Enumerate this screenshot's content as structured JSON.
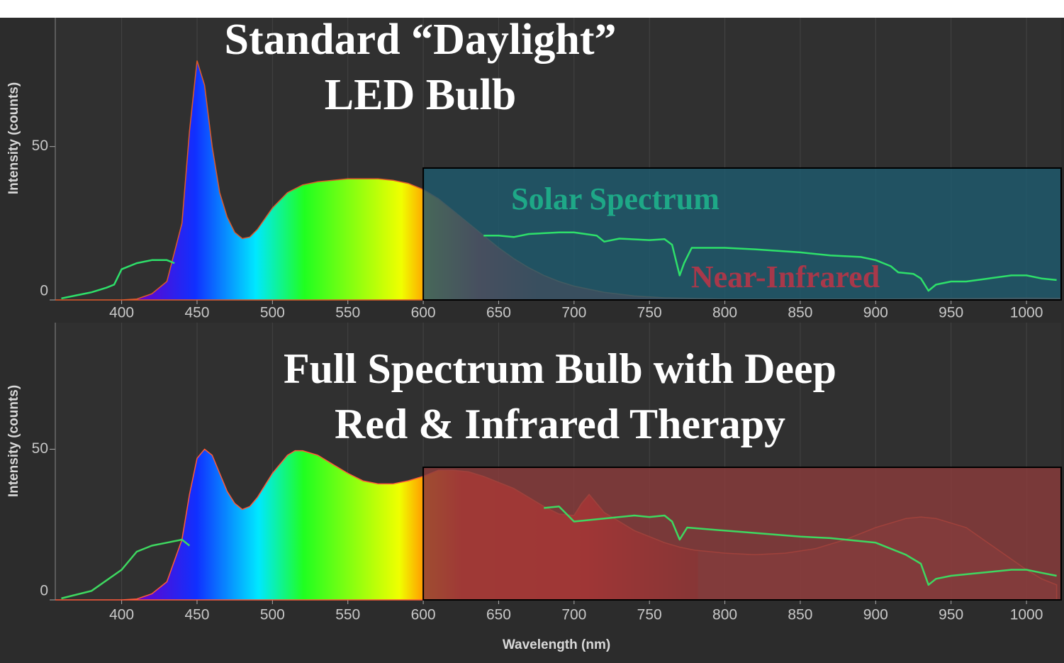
{
  "chart_data": [
    {
      "type": "area",
      "title": [
        "Standard “Daylight”",
        "LED Bulb"
      ],
      "ylabel": "Intensity (counts)",
      "xlim": [
        356,
        1023
      ],
      "ylim": [
        0,
        92
      ],
      "xticks": [
        400,
        450,
        500,
        550,
        600,
        650,
        700,
        750,
        800,
        850,
        900,
        950,
        1000
      ],
      "yticks": [
        0,
        50
      ],
      "grid": "x",
      "highlight": {
        "x": [
          600,
          1023
        ],
        "y": [
          0,
          43
        ],
        "color": "#1f5a6e"
      },
      "annotations": [
        "Near-Infrared"
      ],
      "annotation_color": "#a8384a",
      "series": [
        {
          "type": "area",
          "color": "#e05a2a",
          "x": [
            356,
            400,
            410,
            420,
            430,
            440,
            445,
            450,
            455,
            460,
            465,
            470,
            475,
            480,
            485,
            490,
            500,
            510,
            520,
            530,
            550,
            570,
            580,
            590,
            600,
            610,
            620,
            630,
            640,
            650,
            660,
            670,
            680,
            690,
            700,
            720,
            740,
            760,
            800,
            900,
            1000,
            1023
          ],
          "values": [
            0,
            0,
            0.3,
            2,
            6,
            25,
            55,
            78,
            70,
            50,
            35,
            27,
            22,
            20,
            20.5,
            23,
            30,
            35,
            37.5,
            38.5,
            39.5,
            39.5,
            39,
            38,
            36,
            33,
            29,
            25,
            21,
            17,
            13.5,
            10.5,
            8,
            6,
            4.5,
            2.5,
            1.3,
            0.7,
            0.3,
            0.3,
            0.6,
            0.5
          ]
        },
        {
          "type": "line",
          "name": "Solar Spectrum",
          "color": "#2ee06a",
          "x": [
            360,
            370,
            380,
            390,
            395,
            400,
            410,
            420,
            430,
            435,
            440,
            640,
            650,
            660,
            670,
            690,
            700,
            715,
            720,
            730,
            750,
            760,
            765,
            770,
            773,
            778,
            800,
            820,
            850,
            870,
            890,
            900,
            910,
            915,
            925,
            930,
            935,
            940,
            950,
            960,
            975,
            990,
            1000,
            1010,
            1020
          ],
          "values": [
            0.5,
            1.5,
            2.5,
            4,
            5,
            10,
            12,
            13,
            13,
            12,
            null,
            21,
            21,
            20.5,
            21.5,
            22,
            22,
            21,
            19,
            20,
            19.5,
            19.8,
            18,
            8,
            12,
            17,
            17,
            16.5,
            15.5,
            14.5,
            14,
            13,
            11,
            9,
            8.5,
            7,
            3,
            5,
            6,
            6,
            7,
            8,
            8,
            7,
            6.5
          ]
        }
      ]
    },
    {
      "type": "area",
      "title": [
        "Full Spectrum Bulb with Deep",
        "Red & Infrared Therapy"
      ],
      "ylabel": "Intensity (counts)",
      "xlabel": "Wavelength (nm)",
      "xlim": [
        356,
        1023
      ],
      "ylim": [
        0,
        92
      ],
      "xticks": [
        400,
        450,
        500,
        550,
        600,
        650,
        700,
        750,
        800,
        850,
        900,
        950,
        1000
      ],
      "yticks": [
        0,
        50
      ],
      "grid": "x",
      "highlight": {
        "x": [
          600,
          1023
        ],
        "y": [
          0,
          44
        ],
        "color": "#8a3c3c"
      },
      "series": [
        {
          "type": "area",
          "color": "#ff5a3a",
          "x": [
            356,
            400,
            410,
            420,
            430,
            440,
            445,
            450,
            455,
            460,
            465,
            470,
            475,
            480,
            485,
            490,
            500,
            510,
            515,
            520,
            530,
            540,
            550,
            560,
            570,
            580,
            590,
            600,
            610,
            620,
            630,
            640,
            650,
            660,
            670,
            680,
            690,
            700,
            705,
            710,
            715,
            720,
            730,
            740,
            750,
            760,
            770,
            780,
            800,
            820,
            840,
            860,
            880,
            900,
            920,
            930,
            940,
            960,
            980,
            1000,
            1010,
            1020
          ],
          "values": [
            0,
            0,
            0.3,
            2,
            6,
            20,
            35,
            47,
            50,
            48,
            42,
            36,
            32,
            30,
            31,
            34,
            42,
            48,
            49.5,
            49.5,
            48,
            45,
            42,
            39.5,
            38.5,
            38.5,
            39.5,
            41,
            43,
            43,
            42.5,
            41,
            39,
            37,
            34,
            31,
            28.5,
            28,
            32,
            35,
            32,
            29,
            26,
            23,
            21,
            19,
            17.5,
            16.5,
            15.5,
            15,
            15.5,
            17,
            20,
            24,
            27,
            27.5,
            27,
            24,
            17,
            10,
            7,
            5
          ]
        },
        {
          "type": "line",
          "color": "#3ed860",
          "x": [
            360,
            380,
            400,
            410,
            420,
            430,
            440,
            445,
            450,
            680,
            690,
            700,
            720,
            740,
            750,
            760,
            765,
            770,
            775,
            800,
            850,
            870,
            900,
            910,
            920,
            930,
            935,
            940,
            950,
            970,
            990,
            1000,
            1010,
            1020
          ],
          "values": [
            0.5,
            3,
            10,
            16,
            18,
            19,
            20,
            18,
            null,
            30.5,
            31,
            26,
            27,
            28,
            27.5,
            28,
            26,
            20,
            24,
            23,
            21,
            20.5,
            19,
            17,
            15,
            12,
            5,
            7,
            8,
            9,
            10,
            10,
            9,
            8
          ]
        }
      ]
    }
  ]
}
